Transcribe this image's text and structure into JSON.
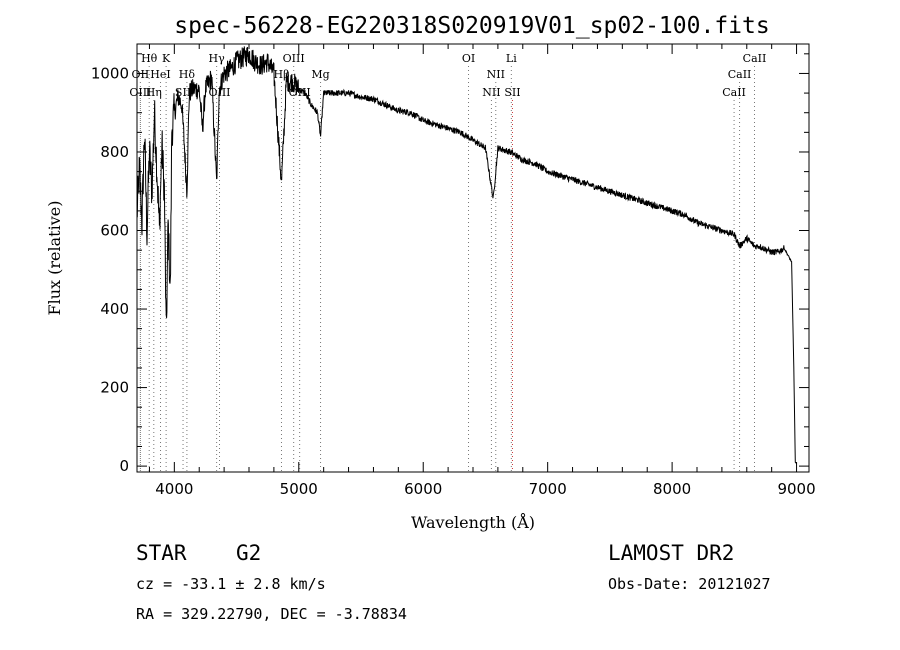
{
  "chart_data": {
    "type": "line",
    "title": "spec-56228-EG220318S020919V01_sp02-100.fits",
    "xlabel": "Wavelength (Å)",
    "ylabel": "Flux (relative)",
    "xlim": [
      3700,
      9100
    ],
    "ylim": [
      -15,
      1075
    ],
    "x_ticks": [
      4000,
      5000,
      6000,
      7000,
      8000,
      9000
    ],
    "y_ticks": [
      0,
      200,
      400,
      600,
      800,
      1000
    ],
    "grid": false,
    "spectrum_anchors": {
      "x": [
        3700,
        3720,
        3740,
        3760,
        3780,
        3800,
        3820,
        3840,
        3860,
        3880,
        3900,
        3920,
        3935,
        3950,
        3968,
        3980,
        4000,
        4030,
        4060,
        4080,
        4101,
        4120,
        4150,
        4200,
        4226,
        4250,
        4300,
        4340,
        4360,
        4400,
        4450,
        4500,
        4550,
        4600,
        4650,
        4700,
        4750,
        4800,
        4861,
        4900,
        4950,
        5000,
        5050,
        5100,
        5150,
        5175,
        5200,
        5250,
        5300,
        5400,
        5500,
        5600,
        5700,
        5800,
        5900,
        6000,
        6100,
        6200,
        6300,
        6400,
        6500,
        6563,
        6600,
        6700,
        6800,
        6900,
        7000,
        7100,
        7200,
        7300,
        7400,
        7500,
        7600,
        7700,
        7800,
        7900,
        8000,
        8100,
        8200,
        8300,
        8400,
        8500,
        8542,
        8600,
        8662,
        8700,
        8800,
        8850,
        8900,
        8960,
        8975,
        8990,
        9000
      ],
      "y": [
        640,
        760,
        620,
        850,
        600,
        800,
        700,
        900,
        760,
        600,
        820,
        700,
        330,
        620,
        440,
        860,
        900,
        940,
        920,
        820,
        700,
        950,
        960,
        960,
        860,
        960,
        990,
        720,
        960,
        1000,
        1010,
        1030,
        1040,
        1050,
        1030,
        1020,
        1030,
        1000,
        720,
        980,
        980,
        960,
        950,
        920,
        900,
        840,
        950,
        950,
        950,
        950,
        940,
        935,
        920,
        905,
        900,
        880,
        870,
        860,
        850,
        830,
        810,
        680,
        810,
        800,
        780,
        770,
        750,
        740,
        730,
        720,
        710,
        700,
        690,
        680,
        670,
        660,
        650,
        640,
        620,
        610,
        600,
        590,
        560,
        580,
        560,
        560,
        545,
        545,
        555,
        520,
        300,
        10,
        5
      ]
    },
    "lines": [
      {
        "label": "Hθ",
        "x": 3798,
        "row": 0,
        "color": "#777777"
      },
      {
        "label": "K",
        "x": 3934,
        "row": 0,
        "color": "#777777"
      },
      {
        "label": "Hγ",
        "x": 4340,
        "row": 0,
        "color": "#777777"
      },
      {
        "label": "OIII",
        "x": 4959,
        "row": 0,
        "color": "#777777"
      },
      {
        "label": "OI",
        "x": 6364,
        "row": 0,
        "color": "#777777"
      },
      {
        "label": "Li",
        "x": 6708,
        "row": 0,
        "color": "#777777"
      },
      {
        "label": "CaII",
        "x": 8662,
        "row": 0,
        "color": "#777777"
      },
      {
        "label": "OII",
        "x": 3727,
        "row": 1,
        "color": "#777777"
      },
      {
        "label": "HeI",
        "x": 3889,
        "row": 1,
        "color": "#777777"
      },
      {
        "label": "Hδ",
        "x": 4101,
        "row": 1,
        "color": "#777777"
      },
      {
        "label": "Hβ",
        "x": 4861,
        "row": 1,
        "color": "#777777"
      },
      {
        "label": "Mg",
        "x": 5175,
        "row": 1,
        "color": "#777777"
      },
      {
        "label": "NII",
        "x": 6583,
        "row": 1,
        "color": "#777777"
      },
      {
        "label": "CaII",
        "x": 8542,
        "row": 1,
        "color": "#777777"
      },
      {
        "label": "OIII",
        "x": 3727,
        "row": 2,
        "color": "#777777"
      },
      {
        "label": "Hη",
        "x": 3835,
        "row": 2,
        "color": "#777777"
      },
      {
        "label": "SII",
        "x": 4070,
        "row": 2,
        "color": "#777777"
      },
      {
        "label": "OIII",
        "x": 4363,
        "row": 2,
        "color": "#777777"
      },
      {
        "label": "OIII",
        "x": 5007,
        "row": 2,
        "color": "#777777"
      },
      {
        "label": "NII",
        "x": 6548,
        "row": 2,
        "color": "#777777"
      },
      {
        "label": "SII",
        "x": 6717,
        "row": 2,
        "color": "#cc3333"
      },
      {
        "label": "CaII",
        "x": 8498,
        "row": 2,
        "color": "#777777"
      }
    ]
  },
  "info": {
    "object_class": "STAR",
    "subclass": "G2",
    "survey": "LAMOST DR2",
    "cz": "cz = -33.1 ± 2.8 km/s",
    "obs_date": "Obs-Date: 20121027",
    "coords": "RA = 329.22790, DEC =  -3.78834"
  }
}
